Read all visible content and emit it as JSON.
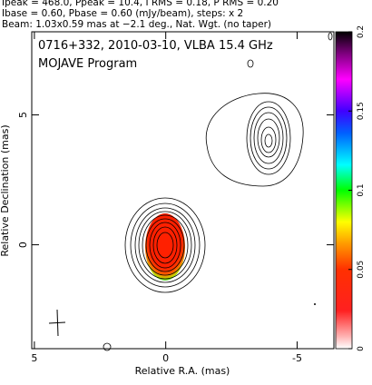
{
  "chart_data": {
    "type": "contour-map",
    "header_lines": [
      "Ipeak = 468.0, Ppeak = 10.4, I RMS = 0.18, P RMS = 0.20",
      "Ibase = 0.60, Pbase = 0.60 (mJy/beam), steps: x 2",
      "Beam: 1.03x0.59 mas at −2.1 deg., Nat. Wgt. (no taper)"
    ],
    "annotations": [
      "0716+332, 2010-03-10, VLBA 15.4 GHz",
      "MOJAVE Program"
    ],
    "xlabel": "Relative R.A. (mas)",
    "ylabel": "Relative Declination (mas)",
    "xlim": [
      5.1,
      -6.4
    ],
    "xticks": [
      5,
      0,
      -5
    ],
    "ylim": [
      -4,
      8.2
    ],
    "yticks": [
      0,
      5
    ],
    "colorbar": {
      "lim": [
        0,
        0.2
      ],
      "ticks": [
        0,
        0.05,
        0.1,
        0.15,
        0.2
      ]
    }
  }
}
